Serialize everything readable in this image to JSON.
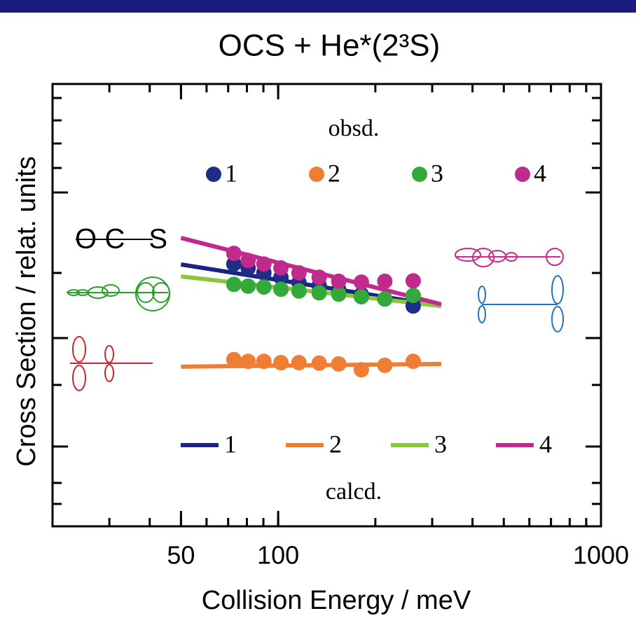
{
  "chart_data": {
    "type": "scatter",
    "title": "OCS + He*(2³S)",
    "x_label": "Collision Energy / meV",
    "y_label": "Cross Section / relat. units",
    "x_scale": "log",
    "xlim": [
      20,
      1000
    ],
    "xticks": [
      50,
      100,
      1000
    ],
    "ylim": [
      0,
      100
    ],
    "molecule_label": "OC S",
    "observed": {
      "label": "obsd.",
      "x": [
        72.9,
        80.7,
        90.3,
        102,
        116,
        134,
        154,
        181,
        214,
        262
      ],
      "series": [
        {
          "name": "1",
          "color": "#1f2d86",
          "values": [
            59.3,
            58.4,
            57.3,
            56.3,
            55.1,
            54.4,
            53.5,
            52.4,
            51.4,
            49.8
          ]
        },
        {
          "name": "2",
          "color": "#ef7d33",
          "values": [
            37.7,
            37.3,
            37.3,
            37.0,
            37.0,
            36.9,
            36.7,
            35.4,
            36.4,
            37.3
          ]
        },
        {
          "name": "3",
          "color": "#33a93c",
          "values": [
            54.7,
            54.3,
            54.1,
            53.6,
            53.2,
            52.8,
            52.5,
            51.9,
            51.4,
            52.2
          ]
        },
        {
          "name": "4",
          "color": "#c02a8c",
          "values": [
            61.7,
            60.1,
            59.3,
            58.4,
            57.3,
            56.3,
            55.4,
            55.2,
            55.4,
            55.5
          ]
        }
      ]
    },
    "calculated": {
      "label": "calcd.",
      "x": [
        50,
        320
      ],
      "series": [
        {
          "name": "1",
          "color": "#1a237e",
          "values": [
            59.2,
            49.8
          ]
        },
        {
          "name": "2",
          "color": "#ef7d33",
          "values": [
            36.1,
            36.7
          ]
        },
        {
          "name": "3",
          "color": "#8cc63f",
          "values": [
            56.5,
            49.8
          ]
        },
        {
          "name": "4",
          "color": "#c02a8c",
          "values": [
            65.2,
            50.2
          ]
        }
      ]
    }
  }
}
